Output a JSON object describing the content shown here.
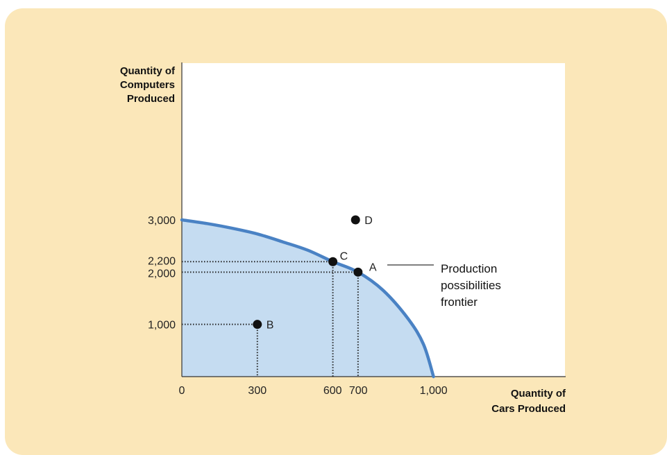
{
  "chart_data": {
    "type": "line",
    "ylabel_lines": [
      "Quantity of",
      "Computers",
      "Produced"
    ],
    "xlabel_lines": [
      "Quantity of",
      "Cars Produced"
    ],
    "xlim": [
      0,
      1525
    ],
    "ylim": [
      0,
      6000
    ],
    "x_ticks": [
      {
        "value": 0,
        "label": "0"
      },
      {
        "value": 300,
        "label": "300"
      },
      {
        "value": 600,
        "label": "600"
      },
      {
        "value": 700,
        "label": "700"
      },
      {
        "value": 1000,
        "label": "1,000"
      }
    ],
    "y_ticks": [
      {
        "value": 1000,
        "label": "1,000"
      },
      {
        "value": 2000,
        "label": "2,000"
      },
      {
        "value": 2200,
        "label": "2,200"
      },
      {
        "value": 3000,
        "label": "3,000"
      }
    ],
    "frontier": {
      "name": "Production possibilities frontier",
      "color": "#4a82c4",
      "fill": "#c5dcf1",
      "x": [
        0,
        100,
        200,
        300,
        400,
        500,
        600,
        700,
        800,
        900,
        960,
        1000
      ],
      "y": [
        3000,
        2930,
        2840,
        2730,
        2580,
        2420,
        2200,
        2000,
        1650,
        1100,
        620,
        0
      ]
    },
    "points": [
      {
        "label": "A",
        "x": 700,
        "y": 2000,
        "guides": true
      },
      {
        "label": "B",
        "x": 300,
        "y": 1000,
        "guides": true
      },
      {
        "label": "C",
        "x": 600,
        "y": 2200,
        "guides": true
      },
      {
        "label": "D",
        "x": 690,
        "y": 3000,
        "guides": false
      }
    ],
    "annotation_lines": [
      "Production",
      "possibilities",
      "frontier"
    ],
    "grid": false
  }
}
